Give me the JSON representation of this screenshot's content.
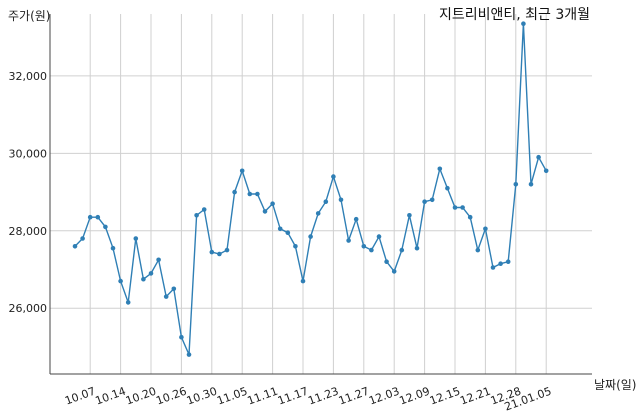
{
  "chart_data": {
    "type": "line",
    "title": "지트리비앤티, 최근 3개월",
    "ylabel": "주가(원)",
    "xlabel": "날짜(일)",
    "x_tick_labels": [
      "10.07",
      "10.14",
      "10.20",
      "10.26",
      "10.30",
      "11.05",
      "11.11",
      "11.17",
      "11.23",
      "11.27",
      "12.03",
      "12.09",
      "12.15",
      "12.21",
      "12.28",
      "21.01.05"
    ],
    "y_tick_labels": [
      "26,000",
      "28,000",
      "30,000",
      "32,000"
    ],
    "y_ticks": [
      26000,
      28000,
      30000,
      32000
    ],
    "ylim": [
      24300,
      33600
    ],
    "grid": true,
    "series": [
      {
        "color": "#2f7fb5",
        "values": [
          27600,
          27800,
          28350,
          28350,
          28100,
          27550,
          26700,
          26150,
          27800,
          26750,
          26900,
          27250,
          26300,
          26500,
          25250,
          24800,
          28400,
          28550,
          27450,
          27400,
          27500,
          29000,
          29550,
          28950,
          28950,
          28500,
          28700,
          28050,
          27950,
          27600,
          26700,
          27850,
          28450,
          28750,
          29400,
          28800,
          27750,
          28300,
          27600,
          27500,
          27850,
          27200,
          26950,
          27500,
          28400,
          27550,
          28750,
          28800,
          29600,
          29100,
          28600,
          28600,
          28350,
          27500,
          28050,
          27050,
          27150,
          27200,
          29200,
          33350,
          29200,
          29900,
          29550
        ]
      }
    ],
    "tick_index": [
      2,
      6,
      10,
      14,
      18,
      22,
      26,
      30,
      34,
      38,
      42,
      46,
      50,
      54,
      58,
      62
    ]
  }
}
